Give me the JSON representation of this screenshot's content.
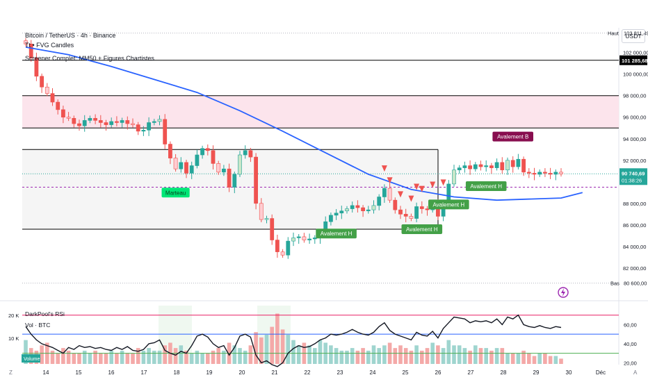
{
  "header": {
    "title": "Bitcoin / TetherUS · 4h · Binance",
    "line2": "Tt • FVG Candles",
    "line3": "Screener Complet: MM50 + Figures Chartistes"
  },
  "currency_button": "USDT",
  "bottom_left_label": "Z",
  "bottom_right_label": "A",
  "indicators": {
    "rsi_title": "DarkPool's RSi",
    "vol_title": "Vol · BTC",
    "volume_badge": "Volume"
  },
  "colors": {
    "bull": "#26a69a",
    "bear": "#ef5350",
    "ma": "#2962ff",
    "zone": "#fce4ec",
    "label_bull": "#43a047",
    "label_bear": "#880e4f",
    "marteau": "#00e676"
  },
  "chart_data": {
    "type": "candlestick",
    "x_labels": [
      "14",
      "15",
      "16",
      "17",
      "18",
      "19",
      "20",
      "21",
      "22",
      "23",
      "24",
      "25",
      "26",
      "27",
      "28",
      "29",
      "30",
      "Déc"
    ],
    "y_ticks": [
      "102 000,00",
      "100 000,00",
      "98 000,00",
      "96 000,00",
      "94 000,00",
      "92 000,00",
      "88 000,00",
      "86 000,00",
      "84 000,00",
      "82 000,00"
    ],
    "y_range": [
      79800,
      104300
    ],
    "price_tags": {
      "haut_label": "Haut",
      "haut_value": "103 811,49",
      "bas_label": "Bas",
      "bas_value": "80 600,00",
      "level_value": "101 285,68",
      "last_value": "90 740,69",
      "countdown": "01:38:26"
    },
    "horizontal_levels": [
      101285.68,
      98000,
      95000,
      93000,
      85600
    ],
    "zone": [
      95000,
      98000
    ],
    "box": [
      85600,
      93000
    ],
    "dashed_level": 89500,
    "close_series": [
      102800,
      101500,
      99800,
      98800,
      98200,
      97400,
      96700,
      96000,
      95900,
      95400,
      95200,
      95700,
      95900,
      95700,
      95500,
      95300,
      95600,
      95500,
      95700,
      95400,
      95300,
      94700,
      94800,
      95500,
      95600,
      95800,
      93500,
      92200,
      91200,
      91800,
      90800,
      91500,
      92500,
      93100,
      92900,
      91700,
      90900,
      91200,
      89500,
      90700,
      92500,
      92900,
      92300,
      88000,
      86500,
      86600,
      84600,
      83500,
      83200,
      84500,
      84800,
      84900,
      84600,
      84700,
      84800,
      85200,
      86300,
      86900,
      87100,
      87300,
      87500,
      87800,
      87600,
      87300,
      87400,
      87800,
      88600,
      89400,
      88300,
      87400,
      87000,
      86800,
      86600,
      87700,
      87500,
      87400,
      87900,
      86800,
      88100,
      89800,
      91100,
      91300,
      91500,
      91200,
      91600,
      91400,
      91500,
      91300,
      91800,
      91100,
      92000,
      91400,
      92100,
      90900,
      90800,
      90700,
      90900,
      90800,
      90700,
      90900,
      90741
    ],
    "ma50": [
      [
        0,
        102500
      ],
      [
        8,
        101800
      ],
      [
        16,
        100700
      ],
      [
        24,
        99500
      ],
      [
        32,
        98300
      ],
      [
        40,
        96600
      ],
      [
        48,
        94700
      ],
      [
        56,
        92700
      ],
      [
        64,
        90700
      ],
      [
        72,
        89300
      ],
      [
        80,
        88600
      ],
      [
        88,
        88300
      ],
      [
        100,
        88500
      ],
      [
        104,
        89000
      ]
    ],
    "patterns": [
      {
        "text": "Marteau",
        "at": 28,
        "type": "marteau"
      },
      {
        "text": "Avalement H",
        "at": 58,
        "type": "bull"
      },
      {
        "text": "Avalement H",
        "at": 74,
        "type": "bull"
      },
      {
        "text": "Avalement H",
        "at": 79,
        "type": "bull"
      },
      {
        "text": "Avalement H",
        "at": 86,
        "type": "bull"
      },
      {
        "text": "Avalement B",
        "at": 91,
        "type": "bear"
      }
    ],
    "sell_markers": [
      67,
      68,
      70,
      72,
      73,
      74,
      76,
      78
    ],
    "volume": [
      9,
      6,
      5,
      7,
      8,
      5,
      4,
      6,
      5,
      4,
      4,
      5,
      4,
      5,
      4,
      4,
      5,
      4,
      5,
      4,
      4,
      6,
      5,
      6,
      5,
      5,
      7,
      8,
      6,
      7,
      5,
      4,
      5,
      4,
      4,
      5,
      6,
      5,
      8,
      7,
      6,
      5,
      7,
      12,
      10,
      11,
      14,
      19,
      13,
      11,
      9,
      7,
      8,
      7,
      6,
      9,
      8,
      7,
      6,
      5,
      5,
      6,
      5,
      6,
      5,
      7,
      6,
      7,
      8,
      6,
      7,
      6,
      5,
      7,
      5,
      6,
      8,
      7,
      6,
      9,
      7,
      7,
      6,
      5,
      7,
      6,
      6,
      5,
      6,
      6,
      4,
      4,
      4,
      5,
      4,
      3,
      4,
      4,
      3,
      3,
      2
    ],
    "volume_ticks": [
      "20 K",
      "10 K"
    ],
    "rsi": [
      58,
      50,
      44,
      40,
      38,
      36,
      33,
      30,
      36,
      34,
      38,
      36,
      37,
      35,
      36,
      34,
      33,
      36,
      34,
      37,
      33,
      32,
      34,
      40,
      41,
      44,
      33,
      30,
      28,
      32,
      30,
      38,
      48,
      50,
      47,
      40,
      36,
      38,
      28,
      36,
      48,
      50,
      47,
      28,
      20,
      22,
      18,
      16,
      20,
      30,
      35,
      38,
      36,
      37,
      40,
      44,
      46,
      50,
      49,
      50,
      52,
      55,
      52,
      50,
      49,
      52,
      58,
      62,
      54,
      50,
      48,
      46,
      44,
      52,
      49,
      48,
      53,
      46,
      56,
      62,
      68,
      67,
      66,
      62,
      64,
      63,
      64,
      62,
      66,
      60,
      68,
      66,
      70,
      60,
      58,
      57,
      59,
      57,
      56,
      58,
      57
    ],
    "rsi_ticks": [
      "60,00",
      "40,00",
      "20,00"
    ],
    "rsi_levels": [
      70,
      50,
      30
    ]
  }
}
